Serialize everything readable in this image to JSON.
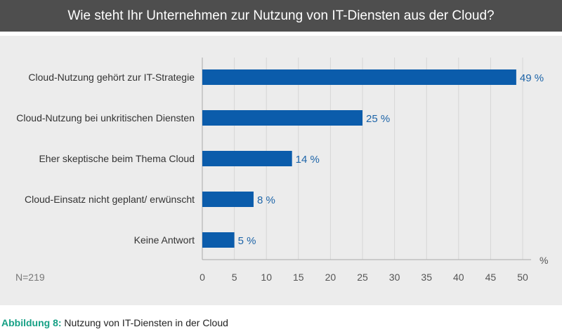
{
  "header": {
    "title": "Wie steht Ihr Unternehmen zur Nutzung von IT-Diensten aus der Cloud?"
  },
  "chart_data": {
    "type": "bar",
    "orientation": "horizontal",
    "categories": [
      "Cloud-Nutzung gehört zur IT-Strategie",
      "Cloud-Nutzung bei unkritischen Diensten",
      "Eher skeptische beim Thema Cloud",
      "Cloud-Einsatz nicht geplant/ erwünscht",
      "Keine Antwort"
    ],
    "values": [
      49,
      25,
      14,
      8,
      5
    ],
    "data_labels": [
      "49 %",
      "25 %",
      "14 %",
      "8 %",
      "5 %"
    ],
    "xlim": [
      0,
      50
    ],
    "xticks": [
      "0",
      "5",
      "10",
      "15",
      "20",
      "25",
      "30",
      "35",
      "40",
      "45",
      "50"
    ],
    "xunit": "%",
    "grid": true,
    "bar_color": "#0b5cab",
    "label_color": "#1d64a8",
    "note": "N=219"
  },
  "caption": {
    "lead": "Abbildung 8:",
    "text": " Nutzung von IT-Diensten in der Cloud"
  }
}
